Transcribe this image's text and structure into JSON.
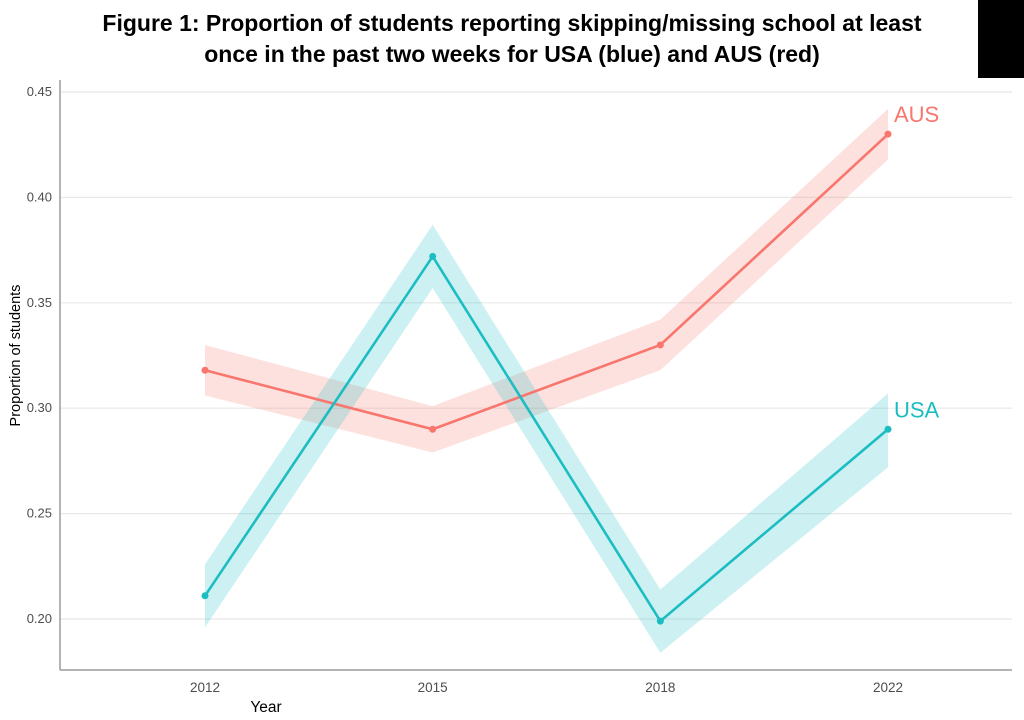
{
  "title": {
    "line1": "Figure 1: Proportion of students reporting skipping/missing school at least",
    "line2": "once in the past two weeks for USA (blue) and AUS (red)"
  },
  "redaction": {
    "color": "#000000"
  },
  "chart_data": {
    "type": "line",
    "x": [
      "2012",
      "2015",
      "2018",
      "2022"
    ],
    "xlabel": "Year",
    "ylabel": "Proportion of students",
    "yticks": [
      0.2,
      0.25,
      0.3,
      0.35,
      0.4,
      0.45
    ],
    "ylim": [
      0.176,
      0.452
    ],
    "grid": "horizontal-major",
    "legend": "end-of-line-labels",
    "colors": {
      "grid": "#e8e8e8",
      "axis": "#9b9b9b",
      "tick_label": "#4d4d4d",
      "axis_title": "#000000"
    },
    "series": [
      {
        "name": "AUS",
        "color": "#F8766D",
        "values": [
          0.318,
          0.29,
          0.33,
          0.43
        ],
        "band_upper": [
          0.33,
          0.301,
          0.342,
          0.442
        ],
        "band_lower": [
          0.306,
          0.279,
          0.318,
          0.418
        ]
      },
      {
        "name": "USA",
        "color": "#1CBDC2",
        "values": [
          0.211,
          0.372,
          0.199,
          0.29
        ],
        "band_upper": [
          0.226,
          0.387,
          0.214,
          0.307
        ],
        "band_lower": [
          0.196,
          0.357,
          0.184,
          0.272
        ]
      }
    ]
  }
}
